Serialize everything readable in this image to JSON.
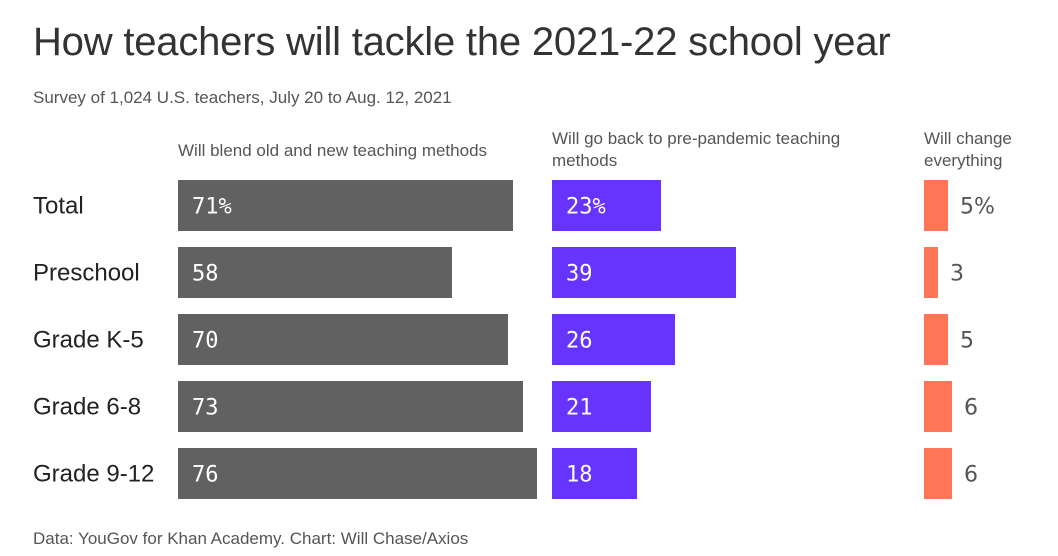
{
  "title": "How teachers will tackle the 2021-22 school year",
  "subtitle": "Survey of 1,024 U.S. teachers, July 20 to Aug. 12, 2021",
  "footer": "Data: YouGov for Khan Academy. Chart: Will Chase/Axios",
  "chart_data": {
    "type": "bar",
    "orientation": "horizontal",
    "categories": [
      "Total",
      "Preschool",
      "Grade K-5",
      "Grade 6-8",
      "Grade 9-12"
    ],
    "series": [
      {
        "name": "Will blend old and new teaching methods",
        "color": "#616161",
        "values": [
          71,
          58,
          70,
          73,
          76
        ],
        "labels": [
          "71%",
          "58",
          "70",
          "73",
          "76"
        ]
      },
      {
        "name": "Will go back to pre-pandemic teaching methods",
        "color": "#6633ff",
        "values": [
          23,
          39,
          26,
          21,
          18
        ],
        "labels": [
          "23%",
          "39",
          "26",
          "21",
          "18"
        ]
      },
      {
        "name": "Will change everything",
        "color": "#ff7555",
        "values": [
          5,
          3,
          5,
          6,
          6
        ],
        "labels": [
          "5%",
          "3",
          "5",
          "6",
          "6"
        ]
      }
    ],
    "unit": "%"
  }
}
